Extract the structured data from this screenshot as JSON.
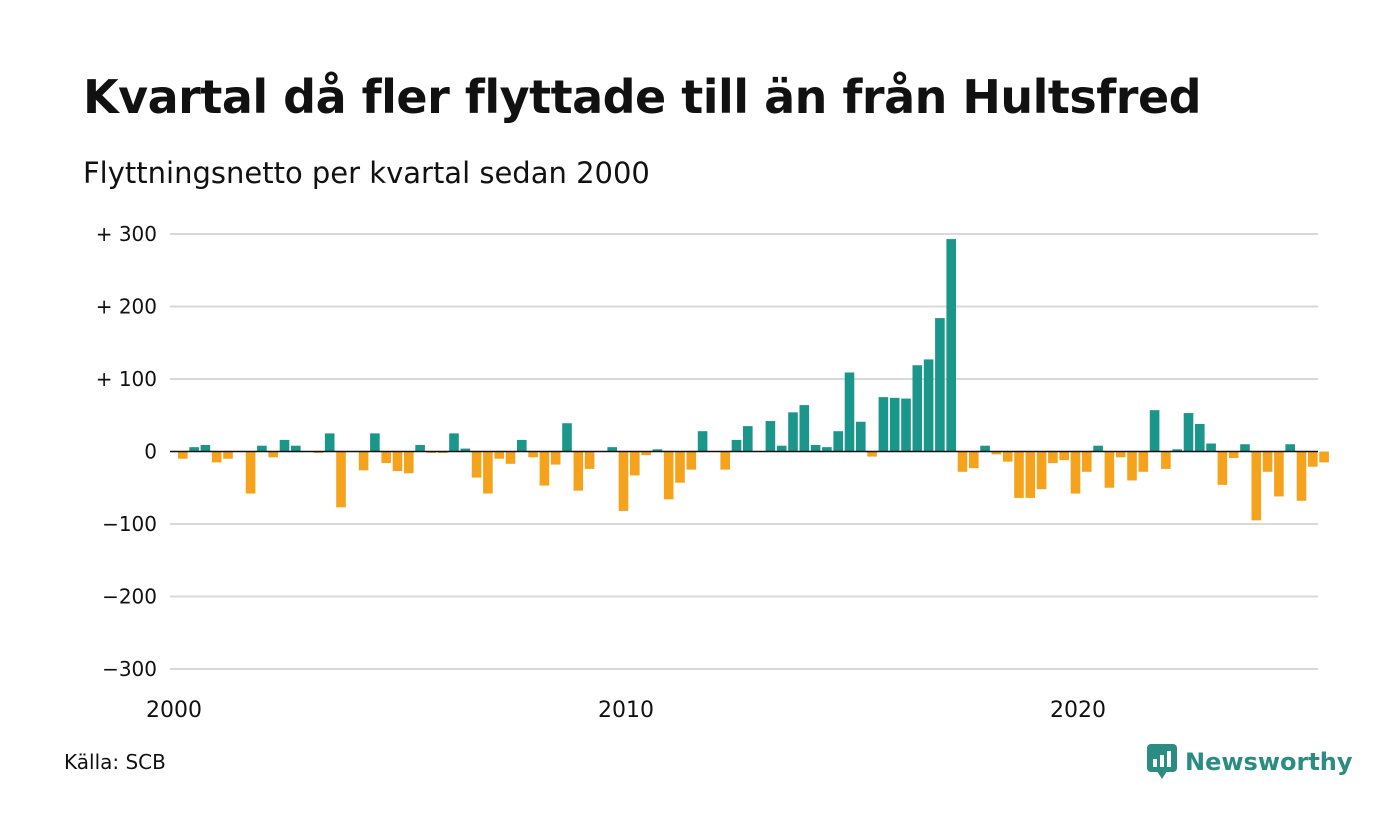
{
  "title": "Kvartal då fler flyttade till än från Hultsfred",
  "subtitle": "Flyttningsnetto per kvartal sedan 2000",
  "source": "Källa: SCB",
  "brand": {
    "name": "Newsworthy",
    "icon": "newsworthy-logo-icon",
    "color": "#2a8c82"
  },
  "colors": {
    "positive": "#1a968a",
    "negative": "#f5a31c",
    "grid": "#d9d9d9",
    "zero_line": "#111111"
  },
  "chart_data": {
    "type": "bar",
    "title": "Kvartal då fler flyttade till än från Hultsfred",
    "subtitle": "Flyttningsnetto per kvartal sedan 2000",
    "xlabel": "",
    "ylabel": "",
    "ylim": [
      -300,
      300
    ],
    "y_ticks": [
      300,
      200,
      100,
      0,
      -100,
      -200,
      -300
    ],
    "y_tick_labels": [
      "+ 300",
      "+ 200",
      "+ 100",
      "0",
      "−100",
      "−200",
      "−300"
    ],
    "x_ticks": [
      "2000",
      "2010",
      "2020"
    ],
    "x_tick_labels": [
      "2000",
      "2010",
      "2020"
    ],
    "grid": true,
    "first_period": "2000 Q1",
    "values": [
      -10,
      6,
      9,
      -15,
      -10,
      0,
      -58,
      8,
      -8,
      16,
      8,
      0,
      -2,
      25,
      -77,
      0,
      -26,
      25,
      -16,
      -27,
      -30,
      9,
      -2,
      -2,
      25,
      4,
      -36,
      -58,
      -10,
      -17,
      16,
      -8,
      -47,
      -18,
      39,
      -54,
      -24,
      0,
      6,
      -82,
      -33,
      -5,
      3,
      -66,
      -43,
      -25,
      28,
      0,
      -25,
      16,
      35,
      0,
      42,
      8,
      54,
      64,
      9,
      6,
      28,
      109,
      41,
      -7,
      75,
      74,
      73,
      119,
      127,
      184,
      293,
      -28,
      -23,
      8,
      -4,
      -14,
      -64,
      -64,
      -52,
      -16,
      -12,
      -58,
      -28,
      8,
      -50,
      -8,
      -40,
      -28,
      57,
      -24,
      3,
      53,
      38,
      11,
      -46,
      -9,
      10,
      -95,
      -28,
      -62,
      10,
      -68,
      -21,
      -15
    ]
  }
}
